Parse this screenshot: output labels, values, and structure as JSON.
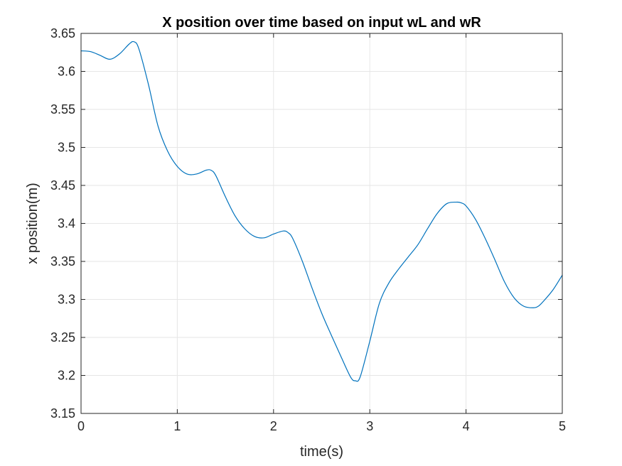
{
  "chart_data": {
    "type": "line",
    "title": "X position over time based on input wL and wR",
    "xlabel": "time(s)",
    "ylabel": "x position(m)",
    "xlim": [
      0,
      5
    ],
    "ylim": [
      3.15,
      3.65
    ],
    "xticks": [
      0,
      1,
      2,
      3,
      4,
      5
    ],
    "xtick_labels": [
      "0",
      "1",
      "2",
      "3",
      "4",
      "5"
    ],
    "yticks": [
      3.15,
      3.2,
      3.25,
      3.3,
      3.35,
      3.4,
      3.45,
      3.5,
      3.55,
      3.6,
      3.65
    ],
    "ytick_labels": [
      "3.15",
      "3.2",
      "3.25",
      "3.3",
      "3.35",
      "3.4",
      "3.45",
      "3.5",
      "3.55",
      "3.6",
      "3.65"
    ],
    "grid": true,
    "legend": "none",
    "colors": {
      "series": "#0072bd",
      "grid": "#e6e6e6",
      "axes": "#262626"
    },
    "series": [
      {
        "x": [
          0,
          0.1,
          0.2,
          0.3,
          0.4,
          0.5,
          0.55,
          0.6,
          0.7,
          0.8,
          0.9,
          1.0,
          1.1,
          1.2,
          1.3,
          1.35,
          1.4,
          1.5,
          1.6,
          1.7,
          1.8,
          1.9,
          2.0,
          2.1,
          2.15,
          2.2,
          2.3,
          2.4,
          2.5,
          2.6,
          2.7,
          2.8,
          2.85,
          2.9,
          3.0,
          3.1,
          3.2,
          3.3,
          3.4,
          3.5,
          3.6,
          3.7,
          3.8,
          3.9,
          3.95,
          4.0,
          4.1,
          4.2,
          4.3,
          4.4,
          4.5,
          4.6,
          4.7,
          4.75,
          4.8,
          4.9,
          5.0
        ],
        "y": [
          3.627,
          3.626,
          3.621,
          3.616,
          3.623,
          3.636,
          3.639,
          3.63,
          3.583,
          3.528,
          3.495,
          3.475,
          3.465,
          3.465,
          3.47,
          3.47,
          3.463,
          3.435,
          3.41,
          3.393,
          3.383,
          3.381,
          3.386,
          3.39,
          3.388,
          3.38,
          3.35,
          3.315,
          3.282,
          3.253,
          3.225,
          3.198,
          3.193,
          3.198,
          3.245,
          3.295,
          3.322,
          3.34,
          3.356,
          3.372,
          3.393,
          3.413,
          3.426,
          3.428,
          3.427,
          3.423,
          3.405,
          3.38,
          3.352,
          3.323,
          3.302,
          3.291,
          3.289,
          3.291,
          3.297,
          3.312,
          3.332
        ]
      }
    ]
  }
}
